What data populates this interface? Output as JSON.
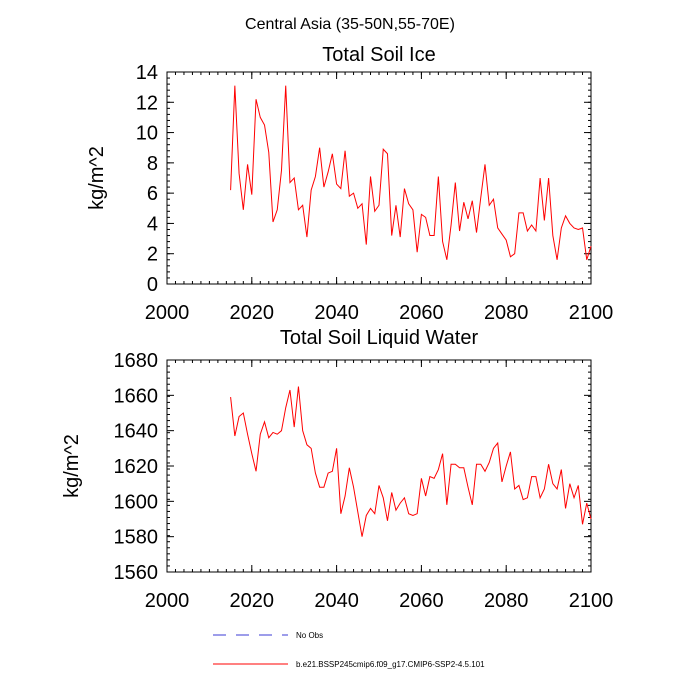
{
  "figure_title": "Central Asia (35-50N,55-70E)",
  "colors": {
    "model": "#ff0000",
    "obs": "#3b3bd6",
    "axis": "#000000"
  },
  "legend": {
    "obs_label": "No Obs",
    "model_label": "b.e21.BSSP245cmip6.f09_g17.CMIP6-SSP2-4.5.101"
  },
  "chart_data": [
    {
      "type": "line",
      "title": "Total Soil Ice",
      "xlabel": "",
      "ylabel": "kg/m^2",
      "xlim": [
        2000,
        2100
      ],
      "ylim": [
        0,
        14
      ],
      "xticks": [
        2000,
        2020,
        2040,
        2060,
        2080,
        2100
      ],
      "xtick_labels": [
        "2000",
        "2020",
        "2040",
        "2060",
        "2080",
        "2100"
      ],
      "yticks": [
        0,
        2,
        4,
        6,
        8,
        10,
        12,
        14
      ],
      "ytick_labels": [
        "0",
        "2",
        "4",
        "6",
        "8",
        "10",
        "12",
        "14"
      ],
      "series": [
        {
          "name": "b.e21.BSSP245cmip6.f09_g17.CMIP6-SSP2-4.5.101",
          "x_start": 2015,
          "values": [
            6.2,
            13.1,
            7.3,
            4.9,
            7.9,
            5.9,
            12.2,
            11.0,
            10.5,
            8.7,
            4.1,
            4.9,
            7.5,
            13.1,
            6.7,
            7.0,
            4.9,
            5.2,
            3.1,
            6.2,
            7.1,
            9.0,
            6.4,
            7.4,
            8.6,
            6.6,
            6.3,
            8.8,
            5.8,
            6.0,
            5.0,
            5.3,
            2.6,
            7.1,
            4.8,
            5.2,
            8.9,
            8.6,
            3.2,
            5.2,
            3.1,
            6.3,
            5.3,
            4.9,
            2.1,
            4.6,
            4.4,
            3.2,
            3.2,
            7.1,
            2.8,
            1.6,
            3.9,
            6.7,
            3.5,
            5.4,
            4.3,
            5.5,
            3.4,
            5.7,
            7.9,
            5.2,
            5.6,
            3.7,
            3.3,
            2.9,
            1.8,
            2.0,
            4.7,
            4.7,
            3.5,
            3.9,
            3.5,
            7.0,
            4.2,
            7.0,
            3.2,
            1.6,
            3.7,
            4.5,
            4.0,
            3.7,
            3.6,
            3.7,
            1.6,
            2.5
          ]
        }
      ]
    },
    {
      "type": "line",
      "title": "Total Soil Liquid Water",
      "xlabel": "",
      "ylabel": "kg/m^2",
      "xlim": [
        2000,
        2100
      ],
      "ylim": [
        1560,
        1680
      ],
      "xticks": [
        2000,
        2020,
        2040,
        2060,
        2080,
        2100
      ],
      "xtick_labels": [
        "2000",
        "2020",
        "2040",
        "2060",
        "2080",
        "2100"
      ],
      "yticks": [
        1560,
        1580,
        1600,
        1620,
        1640,
        1660,
        1680
      ],
      "ytick_labels": [
        "1560",
        "1580",
        "1600",
        "1620",
        "1640",
        "1660",
        "1680"
      ],
      "series": [
        {
          "name": "b.e21.BSSP245cmip6.f09_g17.CMIP6-SSP2-4.5.101",
          "x_start": 2015,
          "values": [
            1659,
            1637,
            1648,
            1650,
            1638,
            1627,
            1617,
            1638,
            1645,
            1636,
            1639,
            1638,
            1640,
            1653,
            1663,
            1642,
            1665,
            1640,
            1632,
            1630,
            1616,
            1608,
            1608,
            1616,
            1617,
            1630,
            1593,
            1603,
            1619,
            1608,
            1594,
            1580,
            1592,
            1596,
            1593,
            1609,
            1602,
            1589,
            1605,
            1595,
            1599,
            1602,
            1593,
            1592,
            1593,
            1613,
            1603,
            1614,
            1613,
            1618,
            1627,
            1598,
            1621,
            1621,
            1619,
            1619,
            1608,
            1598,
            1621,
            1621,
            1617,
            1622,
            1630,
            1633,
            1611,
            1620,
            1628,
            1607,
            1609,
            1601,
            1602,
            1614,
            1614,
            1602,
            1607,
            1621,
            1610,
            1607,
            1618,
            1596,
            1610,
            1602,
            1609,
            1587,
            1599,
            1590
          ]
        }
      ]
    }
  ]
}
